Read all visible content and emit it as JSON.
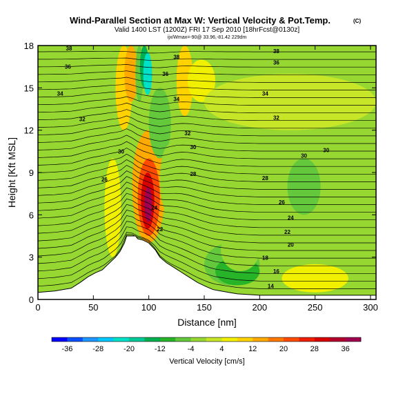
{
  "chart_data": {
    "type": "heatmap",
    "title": "Wind-Parallel Section at Max W: Vertical Velocity & Pot.Temp.",
    "title_mark": "(C)",
    "subtitle": "Valid 1400 LST (1200Z) FRI 17 Sep 2010 [18hrFcst@0130z]",
    "subtitle2": "ijx/Wmax=-90@ 33.96,-81.42 229dm",
    "xlabel": "Distance [nm]",
    "ylabel": "Height [Kft MSL]",
    "xlim": [
      0,
      305
    ],
    "ylim": [
      0,
      18
    ],
    "x_ticks": [
      0,
      50,
      100,
      150,
      200,
      250,
      300
    ],
    "y_ticks": [
      0,
      3,
      6,
      9,
      12,
      15,
      18
    ],
    "colorbar": {
      "label": "Vertical Velocity [cm/s]",
      "ticks": [
        -36,
        -28,
        -20,
        -12,
        -4,
        4,
        12,
        20,
        28,
        36
      ],
      "range": [
        -40,
        40
      ],
      "colors": [
        "#0000ff",
        "#0a50ff",
        "#1e96ff",
        "#00c8ff",
        "#00e1c8",
        "#00c896",
        "#00b050",
        "#28b428",
        "#64c83c",
        "#96d732",
        "#c8e628",
        "#f0f000",
        "#ffd200",
        "#ffaa00",
        "#ff7800",
        "#ff4b00",
        "#f01e00",
        "#d70000",
        "#b4002d",
        "#a00050"
      ]
    },
    "theta_contour_labels": [
      14,
      16,
      18,
      20,
      22,
      22,
      24,
      24,
      26,
      26,
      28,
      28,
      30,
      30,
      30,
      30,
      32,
      32,
      32,
      34,
      34,
      34,
      36,
      36,
      36,
      38,
      38,
      38
    ],
    "terrain_kft": [
      [
        0,
        0.5
      ],
      [
        15,
        0.6
      ],
      [
        30,
        0.8
      ],
      [
        38,
        1.2
      ],
      [
        45,
        1.6
      ],
      [
        52,
        1.9
      ],
      [
        58,
        2.1
      ],
      [
        62,
        2.4
      ],
      [
        66,
        2.7
      ],
      [
        70,
        3.0
      ],
      [
        74,
        3.4
      ],
      [
        78,
        4.0
      ],
      [
        80,
        4.5
      ],
      [
        86,
        4.5
      ],
      [
        88,
        4.5
      ],
      [
        90,
        4.3
      ],
      [
        95,
        4.2
      ],
      [
        100,
        4.0
      ],
      [
        106,
        3.5
      ],
      [
        110,
        3.0
      ],
      [
        116,
        2.6
      ],
      [
        122,
        2.3
      ],
      [
        128,
        2.0
      ],
      [
        136,
        1.6
      ],
      [
        144,
        1.2
      ],
      [
        152,
        0.9
      ],
      [
        158,
        0.7
      ],
      [
        165,
        0.6
      ],
      [
        172,
        0.5
      ],
      [
        180,
        0.4
      ],
      [
        200,
        0.3
      ],
      [
        305,
        0.3
      ]
    ],
    "regions": [
      {
        "x": [
          60,
          75
        ],
        "y": [
          3,
          10
        ],
        "value": 6
      },
      {
        "x": [
          70,
          85
        ],
        "y": [
          12,
          18
        ],
        "value": 8
      },
      {
        "x": [
          78,
          90
        ],
        "y": [
          14,
          18
        ],
        "value": 12
      },
      {
        "x": [
          85,
          115
        ],
        "y": [
          4,
          12
        ],
        "value": 14
      },
      {
        "x": [
          90,
          110
        ],
        "y": [
          4.5,
          10
        ],
        "value": 22
      },
      {
        "x": [
          93,
          105
        ],
        "y": [
          5,
          9
        ],
        "value": 30
      },
      {
        "x": [
          96,
          103
        ],
        "y": [
          5.5,
          8
        ],
        "value": 38
      },
      {
        "x": [
          88,
          95
        ],
        "y": [
          14,
          18
        ],
        "value": -6
      },
      {
        "x": [
          92,
          100
        ],
        "y": [
          15,
          18
        ],
        "value": -16
      },
      {
        "x": [
          95,
          103
        ],
        "y": [
          14.5,
          17.5
        ],
        "value": -22
      },
      {
        "x": [
          100,
          120
        ],
        "y": [
          10,
          15
        ],
        "value": -8
      },
      {
        "x": [
          110,
          128
        ],
        "y": [
          6,
          11
        ],
        "value": -4
      },
      {
        "x": [
          120,
          140
        ],
        "y": [
          4,
          7
        ],
        "value": -2
      },
      {
        "x": [
          125,
          140
        ],
        "y": [
          13,
          18
        ],
        "value": 8
      },
      {
        "x": [
          135,
          160
        ],
        "y": [
          14,
          17
        ],
        "value": 4
      },
      {
        "x": [
          150,
          200
        ],
        "y": [
          1,
          4
        ],
        "value": -6
      },
      {
        "x": [
          160,
          200
        ],
        "y": [
          1,
          3
        ],
        "value": -10
      },
      {
        "x": [
          165,
          200
        ],
        "y": [
          2,
          5
        ],
        "value": -4
      },
      {
        "x": [
          210,
          260
        ],
        "y": [
          5,
          10
        ],
        "value": -3
      },
      {
        "x": [
          225,
          255
        ],
        "y": [
          6,
          10
        ],
        "value": -5
      },
      {
        "x": [
          220,
          280
        ],
        "y": [
          0.5,
          2.5
        ],
        "value": 6
      },
      {
        "x": [
          150,
          305
        ],
        "y": [
          12,
          16
        ],
        "value": 1
      }
    ]
  }
}
